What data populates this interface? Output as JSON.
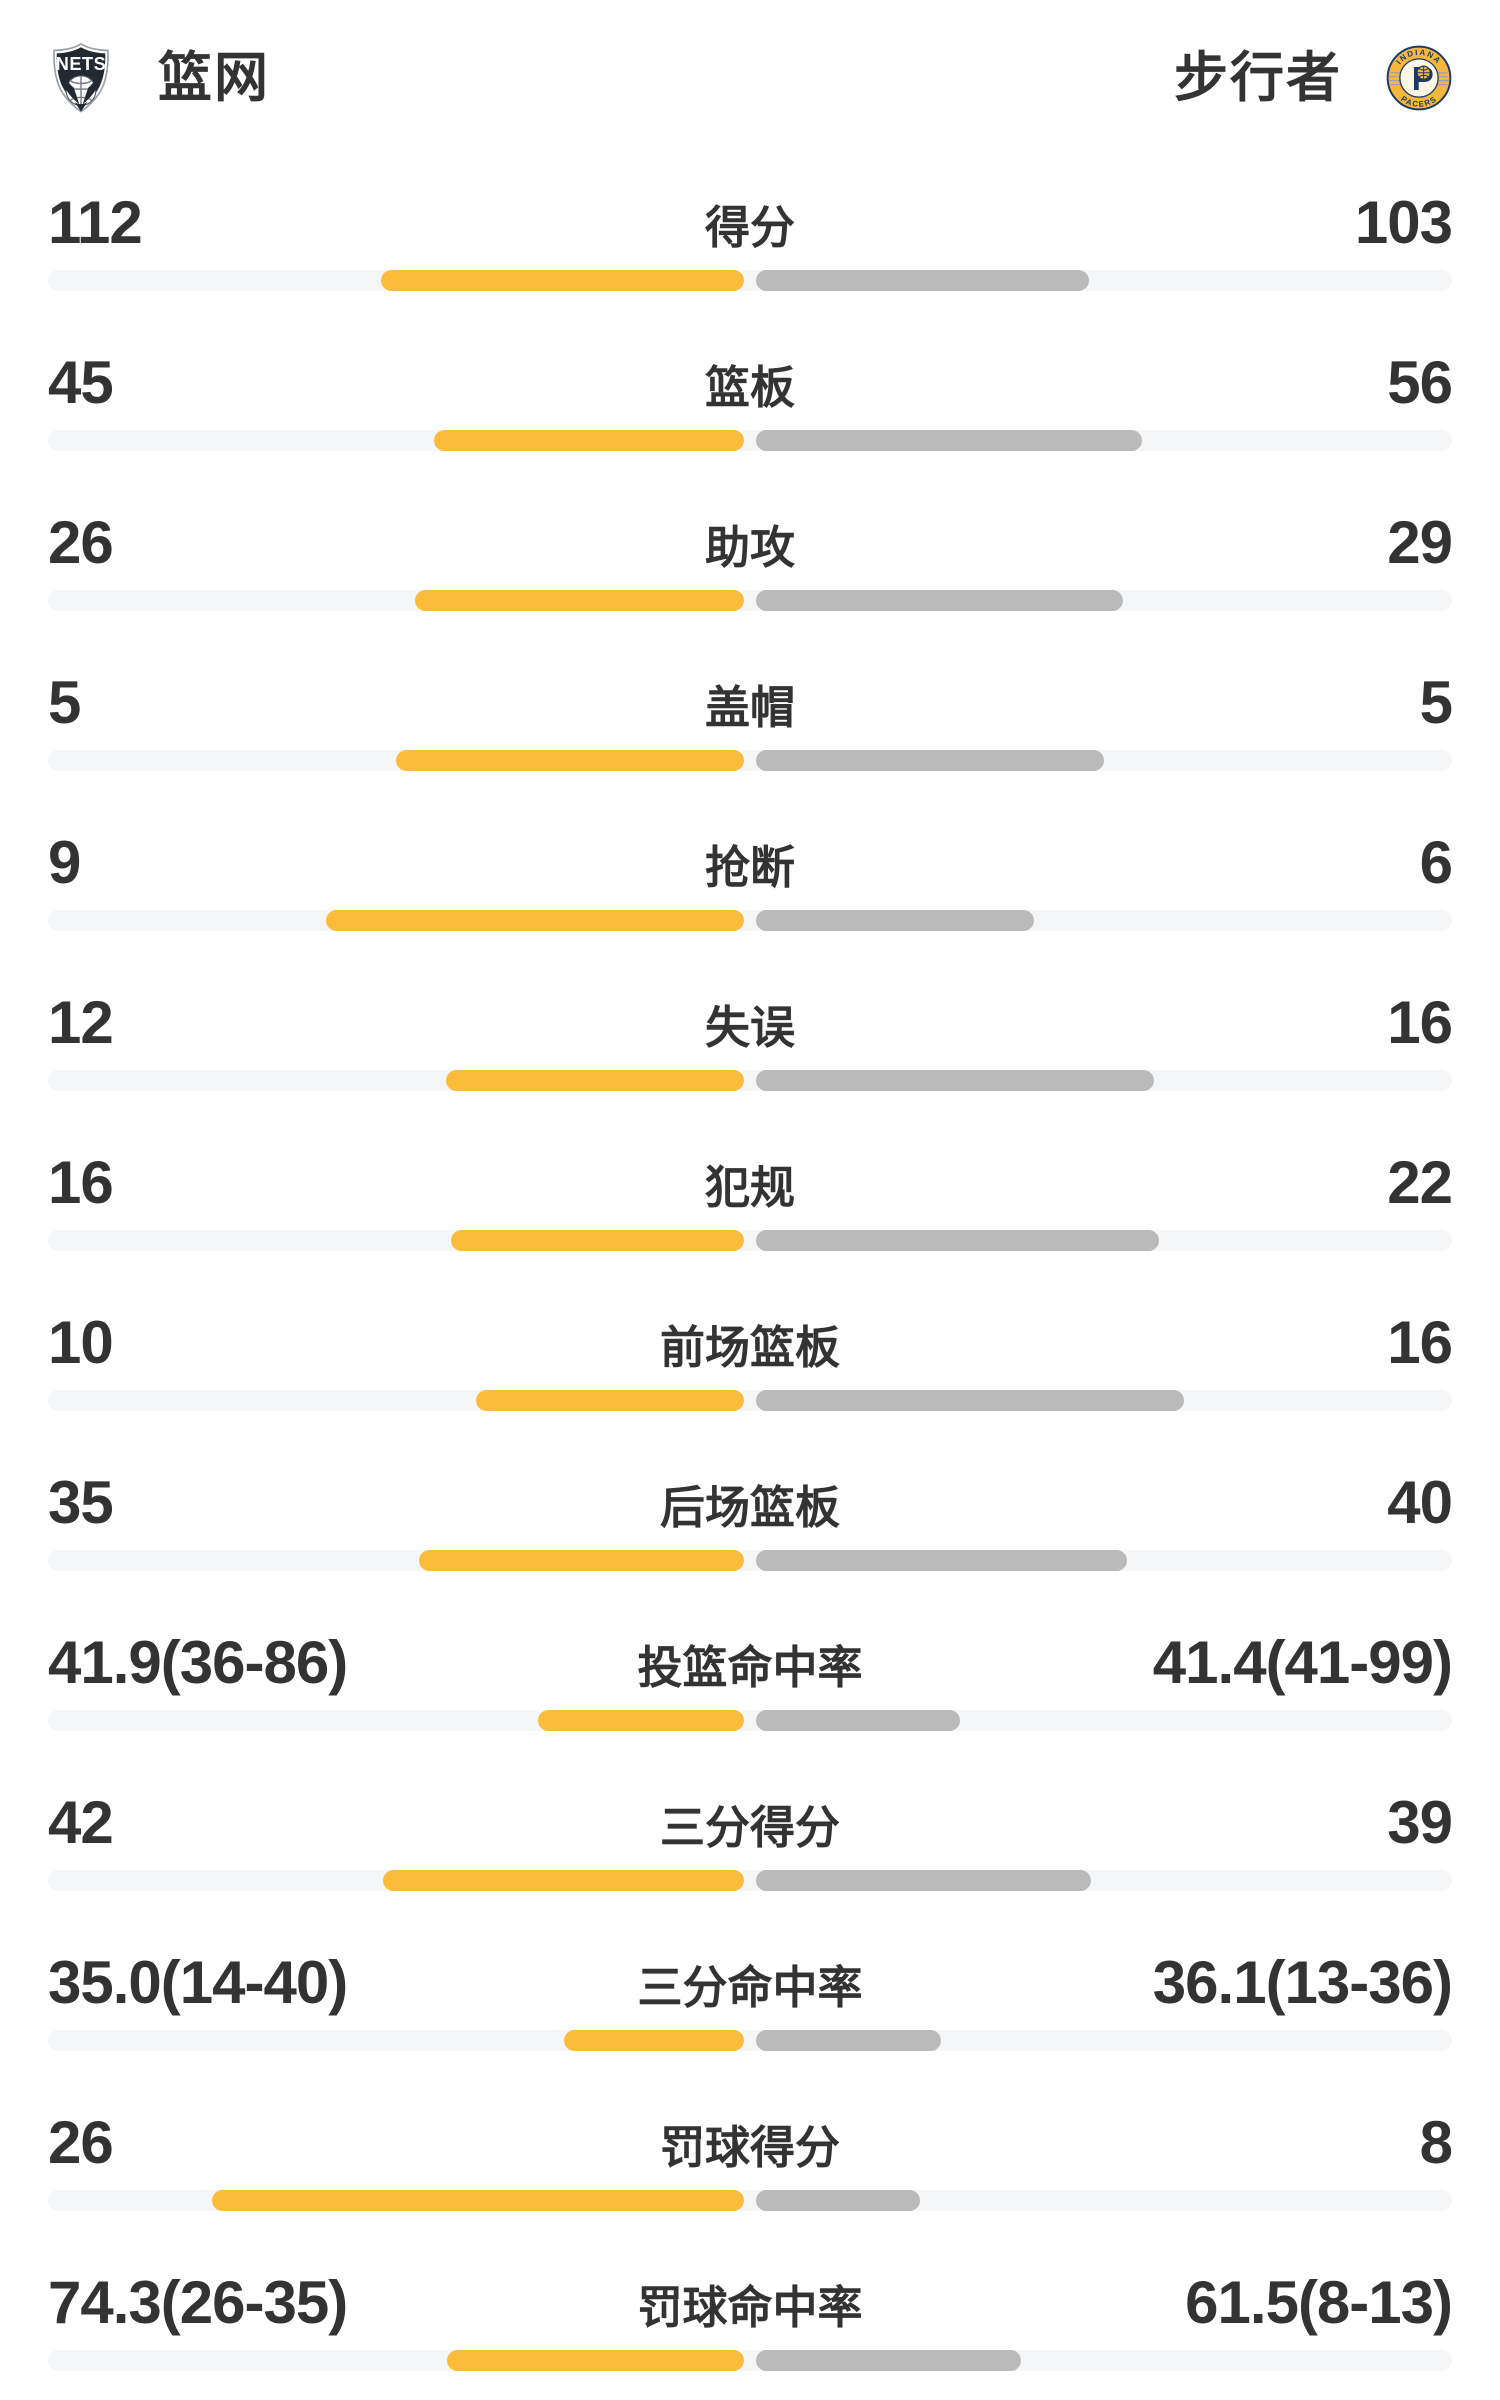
{
  "header": {
    "left_team": {
      "name": "篮网"
    },
    "right_team": {
      "name": "步行者"
    },
    "logo_texts": {
      "nets": "NETS",
      "pacers_top": "INDIANA",
      "pacers_bottom": "PACERS",
      "pacers_letter": "P"
    }
  },
  "colors": {
    "left_bar": "#FBBC3B",
    "right_bar": "#BABABA",
    "track": "#F5F6F8",
    "text": "#333333",
    "nets_dark": "#232930",
    "pacers_gold": "#F6B73C",
    "pacers_navy": "#1D3B67",
    "pacers_cream": "#FFF8E6"
  },
  "rows": [
    {
      "label": "得分",
      "left": "112",
      "right": "103",
      "left_num": 112,
      "right_num": 103,
      "type": "count"
    },
    {
      "label": "篮板",
      "left": "45",
      "right": "56",
      "left_num": 45,
      "right_num": 56,
      "type": "count"
    },
    {
      "label": "助攻",
      "left": "26",
      "right": "29",
      "left_num": 26,
      "right_num": 29,
      "type": "count"
    },
    {
      "label": "盖帽",
      "left": "5",
      "right": "5",
      "left_num": 5,
      "right_num": 5,
      "type": "count"
    },
    {
      "label": "抢断",
      "left": "9",
      "right": "6",
      "left_num": 9,
      "right_num": 6,
      "type": "count"
    },
    {
      "label": "失误",
      "left": "12",
      "right": "16",
      "left_num": 12,
      "right_num": 16,
      "type": "count"
    },
    {
      "label": "犯规",
      "left": "16",
      "right": "22",
      "left_num": 16,
      "right_num": 22,
      "type": "count"
    },
    {
      "label": "前场篮板",
      "left": "10",
      "right": "16",
      "left_num": 10,
      "right_num": 16,
      "type": "count"
    },
    {
      "label": "后场篮板",
      "left": "35",
      "right": "40",
      "left_num": 35,
      "right_num": 40,
      "type": "count"
    },
    {
      "label": "投篮命中率",
      "left": "41.9(36-86)",
      "right": "41.4(41-99)",
      "left_num": 41.9,
      "right_num": 41.4,
      "type": "percent"
    },
    {
      "label": "三分得分",
      "left": "42",
      "right": "39",
      "left_num": 42,
      "right_num": 39,
      "type": "count"
    },
    {
      "label": "三分命中率",
      "left": "35.0(14-40)",
      "right": "36.1(13-36)",
      "left_num": 35.0,
      "right_num": 36.1,
      "type": "percent"
    },
    {
      "label": "罚球得分",
      "left": "26",
      "right": "8",
      "left_num": 26,
      "right_num": 8,
      "type": "count"
    },
    {
      "label": "罚球命中率",
      "left": "74.3(26-35)",
      "right": "61.5(8-13)",
      "left_num": 74.3,
      "right_num": 61.5,
      "type": "percent"
    }
  ],
  "chart_data": {
    "type": "bar",
    "subtype": "paired-horizontal-center-out-comparison",
    "categories": [
      "得分",
      "篮板",
      "助攻",
      "盖帽",
      "抢断",
      "失误",
      "犯规",
      "前场篮板",
      "后场篮板",
      "投篮命中率",
      "三分得分",
      "三分命中率",
      "罚球得分",
      "罚球命中率"
    ],
    "series": [
      {
        "name": "篮网",
        "color": "#FBBC3B",
        "values": [
          112,
          45,
          26,
          5,
          9,
          12,
          16,
          10,
          35,
          41.9,
          42,
          35.0,
          26,
          74.3
        ],
        "labels": [
          "112",
          "45",
          "26",
          "5",
          "9",
          "12",
          "16",
          "10",
          "35",
          "41.9(36-86)",
          "42",
          "35.0(14-40)",
          "26",
          "74.3(26-35)"
        ]
      },
      {
        "name": "步行者",
        "color": "#BABABA",
        "values": [
          103,
          56,
          29,
          5,
          6,
          16,
          22,
          16,
          40,
          41.4,
          39,
          36.1,
          8,
          61.5
        ],
        "labels": [
          "103",
          "56",
          "29",
          "5",
          "6",
          "16",
          "22",
          "16",
          "40",
          "41.4(41-99)",
          "39",
          "36.1(13-36)",
          "8",
          "61.5(8-13)"
        ]
      }
    ],
    "legend_position": "top",
    "grid": false,
    "bar_scaling": "count rows: value/(left+right) of half-track; percent rows: pct/(100+pct) of half-track"
  }
}
